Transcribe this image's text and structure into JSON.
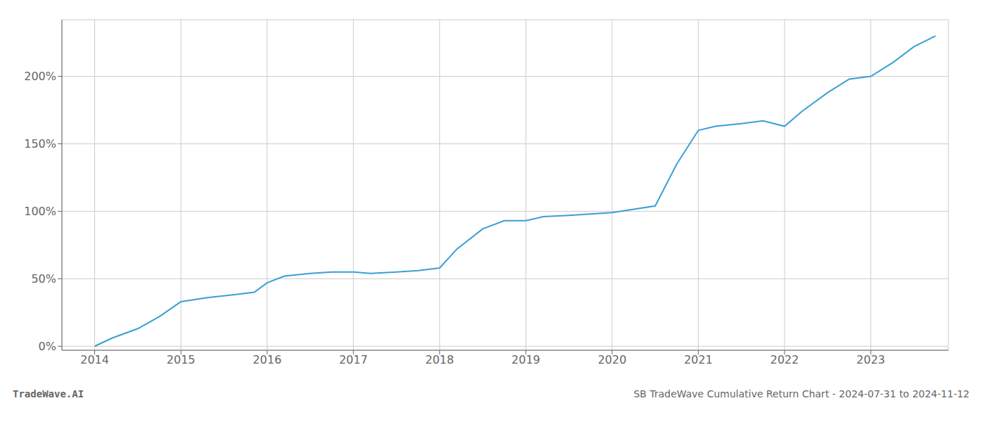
{
  "chart_data": {
    "type": "line",
    "title": "SB TradeWave Cumulative Return Chart - 2024-07-31 to 2024-11-12",
    "annotations": [
      "TradeWave.AI"
    ],
    "color": "#3a9fd4",
    "grid": true,
    "x": [
      2014.0,
      2014.2,
      2014.5,
      2014.75,
      2015.0,
      2015.3,
      2015.6,
      2015.85,
      2016.0,
      2016.2,
      2016.5,
      2016.75,
      2017.0,
      2017.2,
      2017.5,
      2017.75,
      2018.0,
      2018.2,
      2018.5,
      2018.75,
      2019.0,
      2019.2,
      2019.5,
      2019.75,
      2020.0,
      2020.2,
      2020.5,
      2020.75,
      2021.0,
      2021.2,
      2021.5,
      2021.75,
      2022.0,
      2022.2,
      2022.5,
      2022.75,
      2023.0,
      2023.25,
      2023.5,
      2023.75
    ],
    "values": [
      0.0,
      0.06,
      0.13,
      0.22,
      0.33,
      0.36,
      0.38,
      0.4,
      0.47,
      0.52,
      0.54,
      0.55,
      0.55,
      0.54,
      0.55,
      0.56,
      0.58,
      0.72,
      0.87,
      0.93,
      0.93,
      0.96,
      0.97,
      0.98,
      0.99,
      1.01,
      1.04,
      1.35,
      1.6,
      1.63,
      1.65,
      1.67,
      1.63,
      1.74,
      1.88,
      1.98,
      2.0,
      2.1,
      2.22,
      2.3
    ],
    "xlim": [
      2013.62,
      2023.9
    ],
    "xticks": [
      2014,
      2015,
      2016,
      2017,
      2018,
      2019,
      2020,
      2021,
      2022,
      2023
    ],
    "ylim": [
      -0.03,
      2.42
    ],
    "yticks": [
      {
        "value": 0.0,
        "label": "0%"
      },
      {
        "value": 0.5,
        "label": "50%"
      },
      {
        "value": 1.0,
        "label": "100%"
      },
      {
        "value": 1.5,
        "label": "150%"
      },
      {
        "value": 2.0,
        "label": "200%"
      }
    ]
  }
}
